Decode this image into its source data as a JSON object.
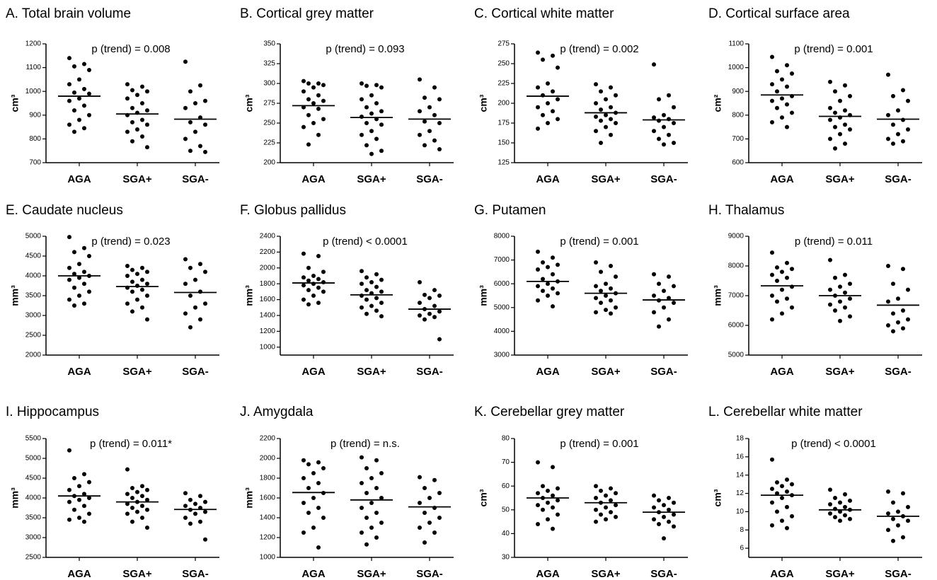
{
  "chart_data": [
    {
      "type": "strip",
      "title": "A. Total brain volume",
      "annotation": "p (trend) = 0.008",
      "ylabel": "cm³",
      "color": "#000000",
      "categories": [
        "AGA",
        "SGA+",
        "SGA-"
      ],
      "ylim": [
        700,
        1200
      ],
      "yticks": [
        700,
        800,
        900,
        1000,
        1100,
        1200
      ],
      "points": [
        [
          1140,
          1115,
          1105,
          1090,
          1050,
          1030,
          1010,
          995,
          990,
          970,
          960,
          940,
          920,
          900,
          880,
          860,
          845,
          830
        ],
        [
          1030,
          1020,
          1005,
          1000,
          985,
          970,
          950,
          930,
          920,
          910,
          900,
          880,
          870,
          860,
          840,
          830,
          810,
          790,
          765
        ],
        [
          1125,
          1025,
          1000,
          960,
          950,
          930,
          890,
          870,
          860,
          830,
          800,
          770,
          750,
          745
        ]
      ],
      "means": [
        980,
        905,
        883
      ]
    },
    {
      "type": "strip",
      "title": "B. Cortical grey matter",
      "annotation": "p (trend) = 0.093",
      "ylabel": "cm³",
      "color": "#000000",
      "categories": [
        "AGA",
        "SGA+",
        "SGA-"
      ],
      "ylim": [
        200,
        350
      ],
      "yticks": [
        200,
        225,
        250,
        275,
        300,
        325,
        350
      ],
      "points": [
        [
          303,
          300,
          300,
          298,
          295,
          290,
          285,
          280,
          278,
          275,
          270,
          268,
          260,
          255,
          250,
          245,
          235,
          223
        ],
        [
          300,
          298,
          297,
          295,
          285,
          280,
          275,
          270,
          265,
          262,
          258,
          255,
          250,
          248,
          240,
          235,
          230,
          222,
          215,
          211
        ],
        [
          305,
          295,
          282,
          280,
          270,
          265,
          260,
          252,
          250,
          240,
          235,
          228,
          222,
          217
        ]
      ],
      "means": [
        272,
        257,
        255
      ]
    },
    {
      "type": "strip",
      "title": "C. Cortical white matter",
      "annotation": "p (trend) = 0.002",
      "ylabel": "cm³",
      "color": "#000000",
      "categories": [
        "AGA",
        "SGA+",
        "SGA-"
      ],
      "ylim": [
        125,
        275
      ],
      "yticks": [
        125,
        150,
        175,
        200,
        225,
        250,
        275
      ],
      "points": [
        [
          264,
          260,
          255,
          245,
          225,
          220,
          215,
          210,
          205,
          200,
          195,
          190,
          185,
          180,
          175,
          168
        ],
        [
          224,
          220,
          215,
          210,
          205,
          200,
          195,
          192,
          188,
          185,
          183,
          180,
          178,
          175,
          170,
          165,
          160,
          150
        ],
        [
          249,
          210,
          205,
          195,
          185,
          182,
          180,
          178,
          175,
          170,
          165,
          160,
          155,
          150,
          148
        ]
      ],
      "means": [
        209,
        188,
        179
      ]
    },
    {
      "type": "strip",
      "title": "D. Cortical surface area",
      "annotation": "p (trend) = 0.001",
      "ylabel": "cm²",
      "color": "#000000",
      "categories": [
        "AGA",
        "SGA+",
        "SGA-"
      ],
      "ylim": [
        600,
        1100
      ],
      "yticks": [
        600,
        700,
        800,
        900,
        1000,
        1100
      ],
      "points": [
        [
          1045,
          1010,
          985,
          975,
          950,
          930,
          920,
          900,
          880,
          870,
          860,
          845,
          830,
          810,
          790,
          770,
          750
        ],
        [
          940,
          925,
          900,
          880,
          860,
          830,
          820,
          810,
          800,
          790,
          780,
          760,
          750,
          740,
          720,
          700,
          680,
          660
        ],
        [
          970,
          905,
          880,
          860,
          820,
          800,
          780,
          760,
          740,
          720,
          700,
          690,
          680
        ]
      ],
      "means": [
        885,
        795,
        783
      ]
    },
    {
      "type": "strip",
      "title": "E. Caudate nucleus",
      "annotation": "p (trend) = 0.023",
      "ylabel": "mm³",
      "color": "#000000",
      "categories": [
        "AGA",
        "SGA+",
        "SGA-"
      ],
      "ylim": [
        2000,
        5000
      ],
      "yticks": [
        2000,
        2500,
        3000,
        3500,
        4000,
        4500,
        5000
      ],
      "points": [
        [
          4980,
          4700,
          4600,
          4500,
          4300,
          4200,
          4100,
          4050,
          4000,
          3950,
          3900,
          3800,
          3700,
          3600,
          3500,
          3400,
          3300,
          3250
        ],
        [
          4250,
          4200,
          4150,
          4100,
          4050,
          4000,
          3900,
          3850,
          3800,
          3750,
          3700,
          3650,
          3600,
          3500,
          3400,
          3300,
          3200,
          3100,
          2900
        ],
        [
          4420,
          4300,
          4200,
          4100,
          3900,
          3800,
          3600,
          3500,
          3300,
          3200,
          3050,
          2900,
          2700
        ]
      ],
      "means": [
        4000,
        3730,
        3580
      ]
    },
    {
      "type": "strip",
      "title": "F. Globus pallidus",
      "annotation": "p (trend) < 0.0001",
      "ylabel": "mm³",
      "color": "#000000",
      "categories": [
        "AGA",
        "SGA+",
        "SGA-"
      ],
      "ylim": [
        900,
        2400
      ],
      "yticks": [
        1000,
        1200,
        1400,
        1600,
        1800,
        2000,
        2200,
        2400
      ],
      "points": [
        [
          2180,
          2150,
          2000,
          1950,
          1900,
          1880,
          1860,
          1840,
          1820,
          1800,
          1780,
          1750,
          1720,
          1700,
          1650,
          1600,
          1560,
          1540
        ],
        [
          1960,
          1920,
          1880,
          1850,
          1820,
          1800,
          1760,
          1720,
          1700,
          1680,
          1650,
          1620,
          1600,
          1560,
          1520,
          1500,
          1460,
          1420,
          1390
        ],
        [
          1820,
          1720,
          1660,
          1650,
          1620,
          1560,
          1520,
          1480,
          1450,
          1420,
          1400,
          1380,
          1350,
          1100
        ]
      ],
      "means": [
        1810,
        1660,
        1480
      ]
    },
    {
      "type": "strip",
      "title": "G. Putamen",
      "annotation": "p (trend) = 0.001",
      "ylabel": "mm³",
      "color": "#000000",
      "categories": [
        "AGA",
        "SGA+",
        "SGA-"
      ],
      "ylim": [
        3000,
        8000
      ],
      "yticks": [
        3000,
        4000,
        5000,
        6000,
        7000,
        8000
      ],
      "points": [
        [
          7350,
          7100,
          6900,
          6800,
          6700,
          6600,
          6400,
          6200,
          6100,
          6000,
          5900,
          5800,
          5700,
          5600,
          5500,
          5300,
          5050
        ],
        [
          6900,
          6750,
          6500,
          6300,
          6000,
          5900,
          5800,
          5700,
          5600,
          5500,
          5400,
          5300,
          5200,
          5000,
          4900,
          4800,
          4750
        ],
        [
          6400,
          6300,
          6000,
          5900,
          5700,
          5500,
          5400,
          5300,
          5200,
          5000,
          4800,
          4500,
          4200
        ]
      ],
      "means": [
        6100,
        5600,
        5320
      ]
    },
    {
      "type": "strip",
      "title": "H. Thalamus",
      "annotation": "p (trend) = 0.011",
      "ylabel": "mm³",
      "color": "#000000",
      "categories": [
        "AGA",
        "SGA+",
        "SGA-"
      ],
      "ylim": [
        5000,
        9000
      ],
      "yticks": [
        5000,
        6000,
        7000,
        8000,
        9000
      ],
      "points": [
        [
          8450,
          8100,
          7950,
          7900,
          7800,
          7700,
          7600,
          7500,
          7300,
          7200,
          7000,
          6900,
          6800,
          6600,
          6400,
          6200
        ],
        [
          8200,
          7700,
          7600,
          7400,
          7300,
          7200,
          7100,
          7000,
          6900,
          6800,
          6700,
          6600,
          6500,
          6300,
          6150
        ],
        [
          8000,
          7900,
          7400,
          7200,
          6900,
          6800,
          6500,
          6400,
          6200,
          6100,
          6000,
          5900,
          5800
        ]
      ],
      "means": [
        7330,
        7000,
        6680
      ]
    },
    {
      "type": "strip",
      "title": "I. Hippocampus",
      "annotation": "p (trend) = 0.011*",
      "ylabel": "mm³",
      "color": "#000000",
      "categories": [
        "AGA",
        "SGA+",
        "SGA-"
      ],
      "ylim": [
        2500,
        5500
      ],
      "yticks": [
        2500,
        3000,
        3500,
        4000,
        4500,
        5000,
        5500
      ],
      "points": [
        [
          5200,
          4600,
          4500,
          4400,
          4300,
          4200,
          4100,
          4050,
          4000,
          3950,
          3900,
          3800,
          3700,
          3600,
          3500,
          3450,
          3400
        ],
        [
          4720,
          4300,
          4250,
          4200,
          4150,
          4100,
          4050,
          4000,
          3950,
          3900,
          3850,
          3800,
          3750,
          3700,
          3650,
          3600,
          3500,
          3400,
          3250
        ],
        [
          4120,
          4050,
          3950,
          3900,
          3850,
          3800,
          3750,
          3700,
          3650,
          3600,
          3500,
          3400,
          3350,
          2950
        ]
      ],
      "means": [
        4050,
        3900,
        3710
      ]
    },
    {
      "type": "strip",
      "title": "J. Amygdala",
      "annotation": "p (trend) = n.s.",
      "ylabel": "mm³",
      "color": "#000000",
      "categories": [
        "AGA",
        "SGA+",
        "SGA-"
      ],
      "ylim": [
        1000,
        2200
      ],
      "yticks": [
        1000,
        1200,
        1400,
        1600,
        1800,
        2000,
        2200
      ],
      "points": [
        [
          1980,
          1960,
          1940,
          1900,
          1850,
          1800,
          1750,
          1700,
          1650,
          1600,
          1550,
          1500,
          1450,
          1400,
          1300,
          1250,
          1100
        ],
        [
          2010,
          1980,
          1900,
          1850,
          1800,
          1750,
          1700,
          1650,
          1600,
          1550,
          1500,
          1450,
          1400,
          1350,
          1300,
          1250,
          1200,
          1130
        ],
        [
          1810,
          1780,
          1700,
          1650,
          1600,
          1550,
          1500,
          1450,
          1400,
          1350,
          1300,
          1250,
          1150
        ]
      ],
      "means": [
        1655,
        1580,
        1510
      ]
    },
    {
      "type": "strip",
      "title": "K. Cerebellar grey matter",
      "annotation": "p (trend) = 0.001",
      "ylabel": "cm³",
      "color": "#000000",
      "categories": [
        "AGA",
        "SGA+",
        "SGA-"
      ],
      "ylim": [
        30,
        80
      ],
      "yticks": [
        30,
        40,
        50,
        60,
        70,
        80
      ],
      "points": [
        [
          70,
          68,
          60,
          59,
          58,
          57,
          56,
          55,
          54,
          53,
          52,
          51,
          50,
          48,
          46,
          44,
          42
        ],
        [
          60,
          59,
          58,
          57,
          56,
          55,
          54,
          53,
          52,
          51,
          50,
          49,
          48,
          47,
          46,
          45
        ],
        [
          56,
          55,
          54,
          53,
          52,
          51,
          50,
          49,
          48,
          47,
          46,
          45,
          44,
          43,
          38
        ]
      ],
      "means": [
        55,
        53,
        49
      ]
    },
    {
      "type": "strip",
      "title": "L. Cerebellar white matter",
      "annotation": "p (trend) < 0.0001",
      "ylabel": "cm³",
      "color": "#000000",
      "categories": [
        "AGA",
        "SGA+",
        "SGA-"
      ],
      "ylim": [
        5,
        18
      ],
      "yticks": [
        6,
        8,
        10,
        12,
        14,
        16,
        18
      ],
      "points": [
        [
          15.7,
          13.5,
          13.2,
          13,
          12.8,
          12.5,
          12.2,
          12,
          11.8,
          11.5,
          11,
          10.5,
          10,
          9.5,
          9,
          8.5,
          8.2
        ],
        [
          12.4,
          11.9,
          11.5,
          11.2,
          11,
          10.8,
          10.5,
          10.3,
          10.2,
          10,
          9.8,
          9.6,
          9.4,
          9.2,
          9
        ],
        [
          12.2,
          12,
          11,
          10.5,
          10,
          9.8,
          9.5,
          9.2,
          9,
          8.5,
          8,
          7.2,
          6.8
        ]
      ],
      "means": [
        11.8,
        10.2,
        9.5
      ]
    }
  ]
}
